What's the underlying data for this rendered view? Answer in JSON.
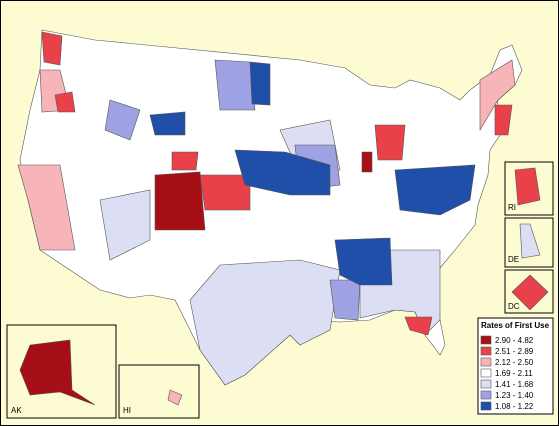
{
  "legend": {
    "title": "Rates of First Use",
    "items": [
      {
        "label": "2.90 - 4.82",
        "color": "#a50f15"
      },
      {
        "label": "2.51 - 2.89",
        "color": "#e8414a"
      },
      {
        "label": "2.12 - 2.50",
        "color": "#f7b5b9"
      },
      {
        "label": "1.69 - 2.11",
        "color": "#ffffff"
      },
      {
        "label": "1.41 - 1.68",
        "color": "#dcdff3"
      },
      {
        "label": "1.23 - 1.40",
        "color": "#9ea2e2"
      },
      {
        "label": "1.08 - 1.22",
        "color": "#1f4fa8"
      }
    ]
  },
  "insets": {
    "ri": "RI",
    "de": "DE",
    "dc": "DC",
    "ak": "AK",
    "hi": "HI"
  }
}
